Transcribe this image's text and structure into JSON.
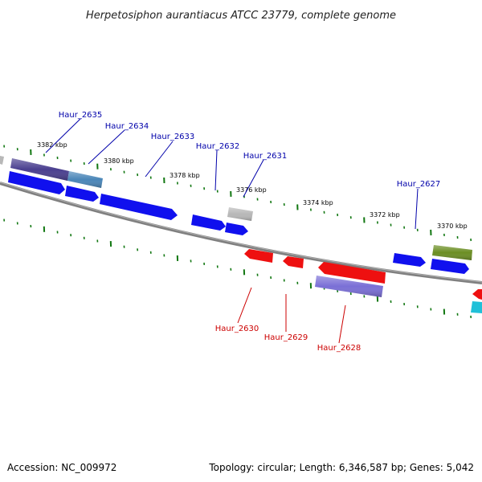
{
  "title": "Herpetosiphon aurantiacus ATCC 23779, complete genome",
  "footer": {
    "accession": "Accession: NC_009972",
    "summary": "Topology: circular; Length: 6,346,587 bp; Genes: 5,042"
  },
  "colors": {
    "forward_label": "#0000aa",
    "reverse_label": "#cc0000",
    "backbone": "#808080",
    "tick": "#117711"
  },
  "kbp_labels": [
    {
      "text": "3382 kbp"
    },
    {
      "text": "3380 kbp"
    },
    {
      "text": "3378 kbp"
    },
    {
      "text": "3376 kbp"
    },
    {
      "text": "3374 kbp"
    },
    {
      "text": "3372 kbp"
    },
    {
      "text": "3370 kbp"
    }
  ],
  "gene_labels": [
    {
      "name": "Haur_2635",
      "strand": "forward"
    },
    {
      "name": "Haur_2634",
      "strand": "forward"
    },
    {
      "name": "Haur_2633",
      "strand": "forward"
    },
    {
      "name": "Haur_2632",
      "strand": "forward"
    },
    {
      "name": "Haur_2631",
      "strand": "forward"
    },
    {
      "name": "Haur_2627",
      "strand": "forward"
    },
    {
      "name": "Haur_2630",
      "strand": "reverse"
    },
    {
      "name": "Haur_2629",
      "strand": "reverse"
    },
    {
      "name": "Haur_2628",
      "strand": "reverse"
    }
  ],
  "feature_colors": {
    "cds_forward": "#1010ee",
    "cds_reverse": "#ee1010",
    "purple": "#4a3f8f",
    "steelblue": "#4a86b8",
    "gray": "#b8b8b8",
    "olive": "#6b8e23",
    "lavender": "#7a6fd6",
    "cyan": "#20c0d8"
  }
}
